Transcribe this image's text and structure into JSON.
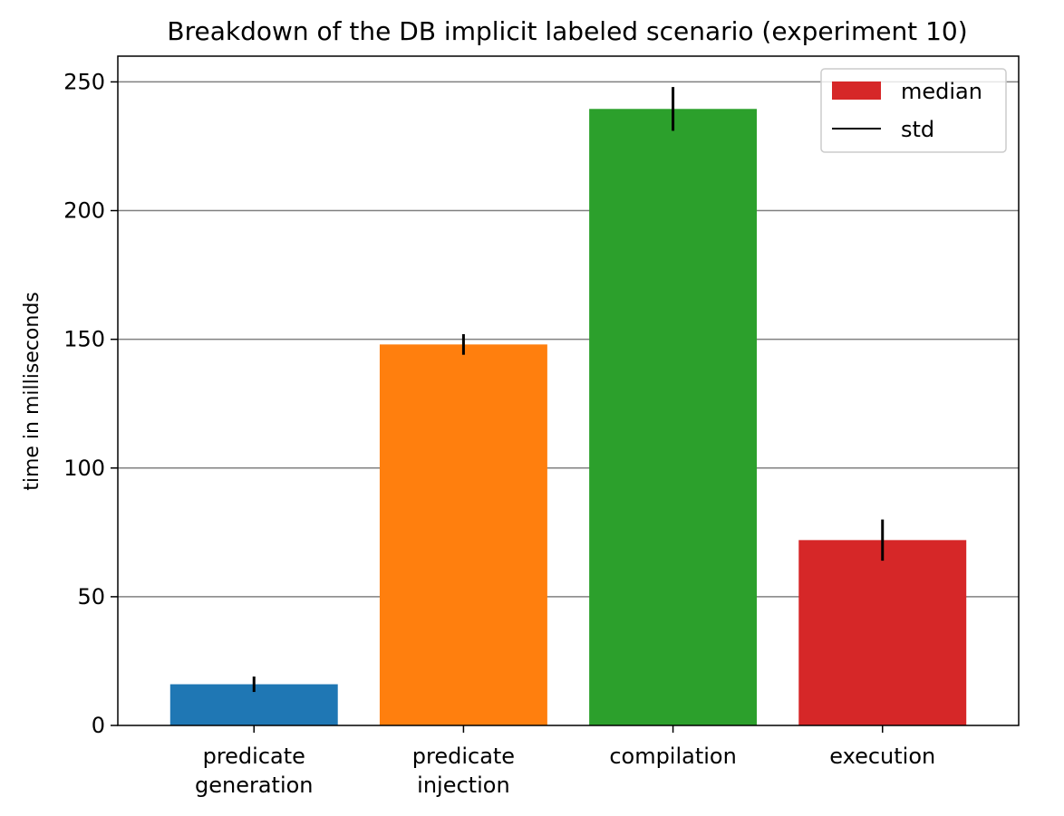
{
  "chart_data": {
    "type": "bar",
    "title": "Breakdown of the DB implicit labeled scenario (experiment 10)",
    "xlabel": "",
    "ylabel": "time in milliseconds",
    "categories": [
      [
        "predicate",
        "generation"
      ],
      [
        "predicate",
        "injection"
      ],
      [
        "compilation"
      ],
      [
        "execution"
      ]
    ],
    "values": [
      16,
      148,
      239.5,
      72
    ],
    "std": [
      3,
      4,
      8.5,
      8
    ],
    "bar_colors": [
      "#1f77b4",
      "#ff7f0e",
      "#2ca02c",
      "#d62728"
    ],
    "errorbar_color": "#000000",
    "grid_color": "#808080",
    "ylim": [
      0,
      260
    ],
    "yticks": [
      0,
      50,
      100,
      150,
      200,
      250
    ],
    "grid": "y",
    "legend": {
      "placement": "top-right",
      "entries": [
        {
          "label": "median",
          "kind": "patch",
          "color": "#d62728"
        },
        {
          "label": "std",
          "kind": "line",
          "color": "#000000"
        }
      ]
    }
  }
}
